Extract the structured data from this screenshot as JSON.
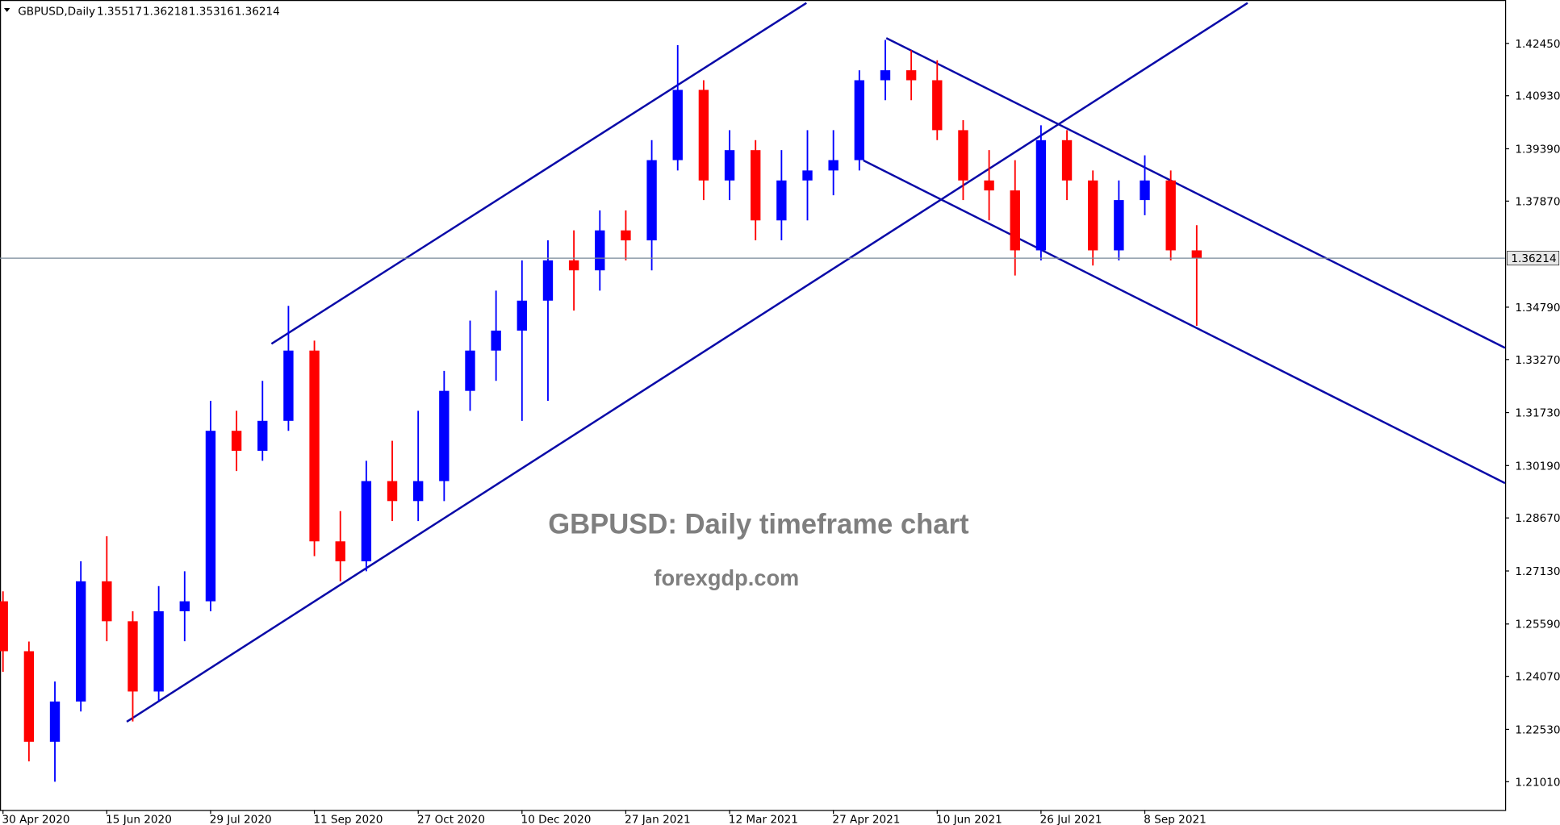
{
  "chart_data": {
    "type": "candlestick",
    "title": "GBPUSD,Daily",
    "header_values": [
      1.35517,
      1.36218,
      1.35316,
      1.36214
    ],
    "annotations": [
      "GBPUSD: Daily timeframe chart",
      "forexgdp.com"
    ],
    "categories": [
      "30 Apr 2020",
      null,
      null,
      null,
      "15 Jun 2020",
      null,
      null,
      null,
      "29 Jul 2020",
      null,
      null,
      null,
      "11 Sep 2020",
      null,
      null,
      null,
      "27 Oct 2020",
      null,
      null,
      null,
      "10 Dec 2020",
      null,
      null,
      null,
      "27 Jan 2021",
      null,
      null,
      null,
      "12 Mar 2021",
      null,
      null,
      null,
      "27 Apr 2021",
      null,
      null,
      null,
      "10 Jun 2021",
      null,
      null,
      null,
      "26 Jul 2021",
      null,
      null,
      null,
      "8 Sep 2021",
      null,
      null
    ],
    "open": [
      1.2625,
      1.248,
      1.2217,
      1.2334,
      1.2683,
      1.2567,
      1.2363,
      1.2596,
      1.2625,
      1.312,
      1.3062,
      1.3149,
      1.3353,
      1.2799,
      1.2741,
      1.2974,
      1.2916,
      1.2974,
      1.3236,
      1.3353,
      1.3411,
      1.3498,
      1.3615,
      1.3586,
      1.3702,
      1.3673,
      1.3906,
      1.411,
      1.3847,
      1.3935,
      1.3731,
      1.3847,
      1.3876,
      1.3906,
      1.4138,
      1.4167,
      1.4138,
      1.3993,
      1.3847,
      1.3818,
      1.3644,
      1.3964,
      1.3847,
      1.3644,
      1.379,
      1.3847,
      1.3644
    ],
    "high": [
      1.2654,
      1.2508,
      1.2392,
      1.2741,
      1.2814,
      1.2596,
      1.2669,
      1.2712,
      1.3207,
      1.3178,
      1.3265,
      1.3483,
      1.3382,
      1.2887,
      1.3033,
      1.3091,
      1.3178,
      1.3294,
      1.344,
      1.3527,
      1.3615,
      1.3673,
      1.3702,
      1.376,
      1.376,
      1.3964,
      1.424,
      1.4138,
      1.3993,
      1.3964,
      1.3935,
      1.3993,
      1.3993,
      1.4167,
      1.4255,
      1.4225,
      1.4196,
      1.4022,
      1.3935,
      1.3906,
      1.4007,
      1.3993,
      1.3876,
      1.3847,
      1.392,
      1.3876,
      1.3717
    ],
    "low": [
      1.242,
      1.216,
      1.2101,
      1.2305,
      1.2509,
      1.2276,
      1.2334,
      1.2509,
      1.2596,
      1.3003,
      1.3033,
      1.312,
      1.2756,
      1.2683,
      1.2712,
      1.2858,
      1.2858,
      1.2916,
      1.3178,
      1.3265,
      1.3149,
      1.3207,
      1.3469,
      1.3527,
      1.3615,
      1.3586,
      1.3876,
      1.379,
      1.379,
      1.3673,
      1.3673,
      1.3731,
      1.3804,
      1.3876,
      1.408,
      1.408,
      1.3964,
      1.379,
      1.3731,
      1.3571,
      1.3615,
      1.379,
      1.36,
      1.3615,
      1.3746,
      1.3615,
      1.3425
    ],
    "close": [
      1.248,
      1.2217,
      1.2334,
      1.2683,
      1.2567,
      1.2363,
      1.2596,
      1.2625,
      1.312,
      1.3062,
      1.3149,
      1.3353,
      1.2799,
      1.2741,
      1.2974,
      1.2916,
      1.2974,
      1.3236,
      1.3353,
      1.3411,
      1.3498,
      1.3615,
      1.3586,
      1.3702,
      1.3673,
      1.3906,
      1.411,
      1.3847,
      1.3935,
      1.3731,
      1.3847,
      1.3876,
      1.3906,
      1.4138,
      1.4167,
      1.4138,
      1.3993,
      1.3847,
      1.3818,
      1.3644,
      1.3964,
      1.3847,
      1.3644,
      1.379,
      1.3847,
      1.3644,
      1.36214
    ],
    "up_color": "#0000ff",
    "down_color": "#ff0000",
    "current_price": 1.36214,
    "ylim": [
      1.2019,
      1.4371
    ],
    "yticks": [
      {
        "value": 1.4245,
        "label": "1.42450"
      },
      {
        "value": 1.4093,
        "label": "1.40930"
      },
      {
        "value": 1.3939,
        "label": "1.39390"
      },
      {
        "value": 1.3787,
        "label": "1.37870"
      },
      {
        "value": 1.3479,
        "label": "1.34790"
      },
      {
        "value": 1.3327,
        "label": "1.33270"
      },
      {
        "value": 1.3173,
        "label": "1.31730"
      },
      {
        "value": 1.3019,
        "label": "1.30190"
      },
      {
        "value": 1.2867,
        "label": "1.28670"
      },
      {
        "value": 1.2713,
        "label": "1.27130"
      },
      {
        "value": 1.2559,
        "label": "1.25590"
      },
      {
        "value": 1.2407,
        "label": "1.24070"
      },
      {
        "value": 1.2253,
        "label": "1.22530"
      },
      {
        "value": 1.2101,
        "label": "1.21010"
      }
    ]
  }
}
